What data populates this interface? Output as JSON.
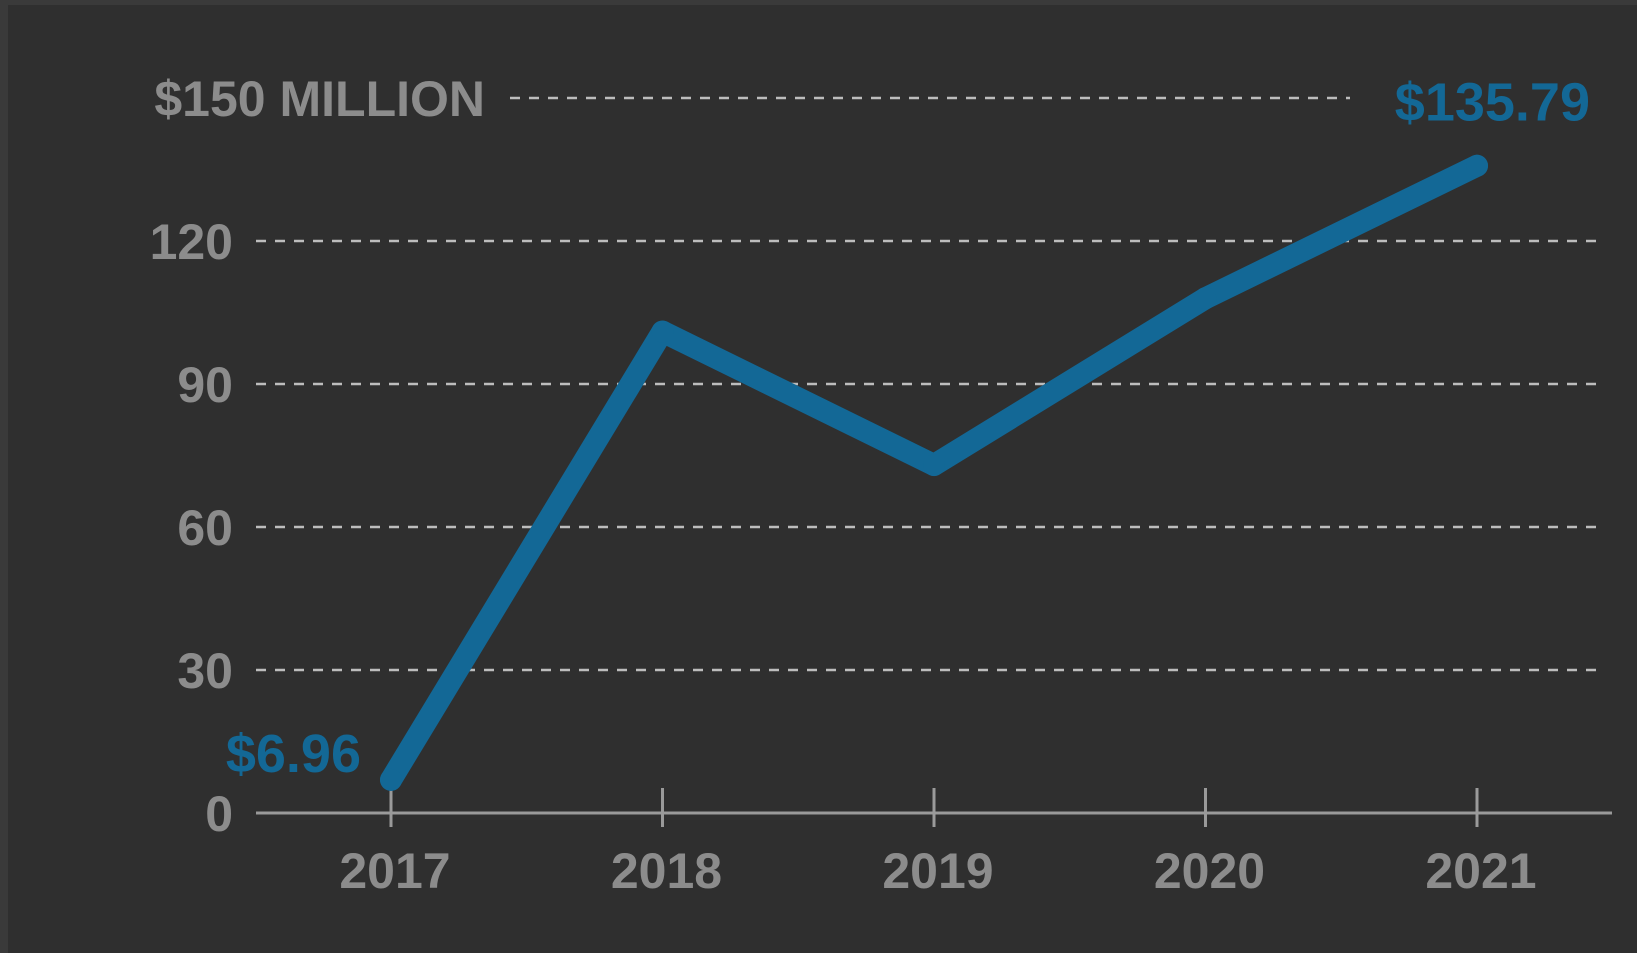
{
  "chart_data": {
    "type": "line",
    "title": "",
    "xlabel": "",
    "ylabel": "",
    "y_top_label": "$150 MILLION",
    "x": [
      "2017",
      "2018",
      "2019",
      "2020",
      "2021"
    ],
    "series": [
      {
        "values": [
          6.96,
          101,
          73,
          108,
          135.79
        ]
      }
    ],
    "ylim": [
      0,
      150
    ],
    "yticks": [
      0,
      30,
      60,
      90,
      120,
      150
    ],
    "ytick_labels": [
      "0",
      "30",
      "60",
      "90",
      "120",
      "$150 MILLION"
    ],
    "grid": "horizontal-dashed",
    "annotations": [
      {
        "index": 0,
        "text": "$6.96",
        "position": "left"
      },
      {
        "index": 4,
        "text": "$135.79",
        "position": "above"
      }
    ],
    "colors": {
      "background": "#2f2f2f",
      "line": "#136896",
      "grid": "#bdbdbd",
      "axis": "#9a9a9a",
      "tick_text": "#8c8c8c"
    }
  }
}
